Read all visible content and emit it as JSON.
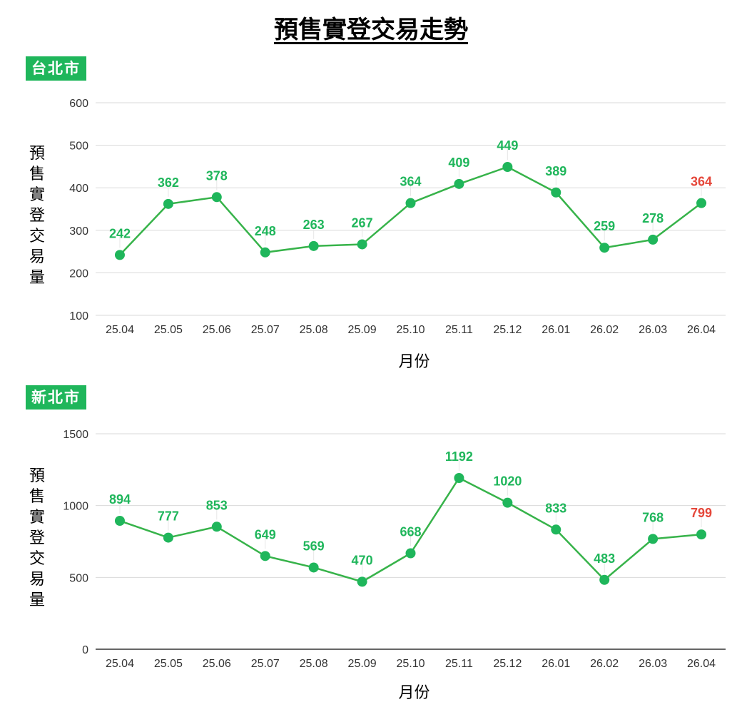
{
  "title": "預售實登交易走勢",
  "colors": {
    "series": "#1fb65b",
    "line": "#37b34a",
    "highlight": "#e5473a",
    "grid": "#d9d9d9",
    "badge_bg": "#1fb65b"
  },
  "chart_data": [
    {
      "type": "line",
      "region": "台北市",
      "xlabel": "月份",
      "ylabel": "預售實登交易量",
      "ylim": [
        100,
        600
      ],
      "yticks": [
        100,
        200,
        300,
        400,
        500,
        600
      ],
      "grid": true,
      "categories": [
        "25.04",
        "25.05",
        "25.06",
        "25.07",
        "25.08",
        "25.09",
        "25.10",
        "25.11",
        "25.12",
        "26.01",
        "26.02",
        "26.03",
        "26.04"
      ],
      "values": [
        242,
        362,
        378,
        248,
        263,
        267,
        364,
        409,
        449,
        389,
        259,
        278,
        364
      ],
      "highlight_last": true
    },
    {
      "type": "line",
      "region": "新北市",
      "xlabel": "月份",
      "ylabel": "預售實登交易量",
      "ylim": [
        0,
        1500
      ],
      "yticks": [
        0,
        500,
        1000,
        1500
      ],
      "grid": true,
      "categories": [
        "25.04",
        "25.05",
        "25.06",
        "25.07",
        "25.08",
        "25.09",
        "25.10",
        "25.11",
        "25.12",
        "26.01",
        "26.02",
        "26.03",
        "26.04"
      ],
      "values": [
        894,
        777,
        853,
        649,
        569,
        470,
        668,
        1192,
        1020,
        833,
        483,
        768,
        799
      ],
      "highlight_last": true
    }
  ]
}
